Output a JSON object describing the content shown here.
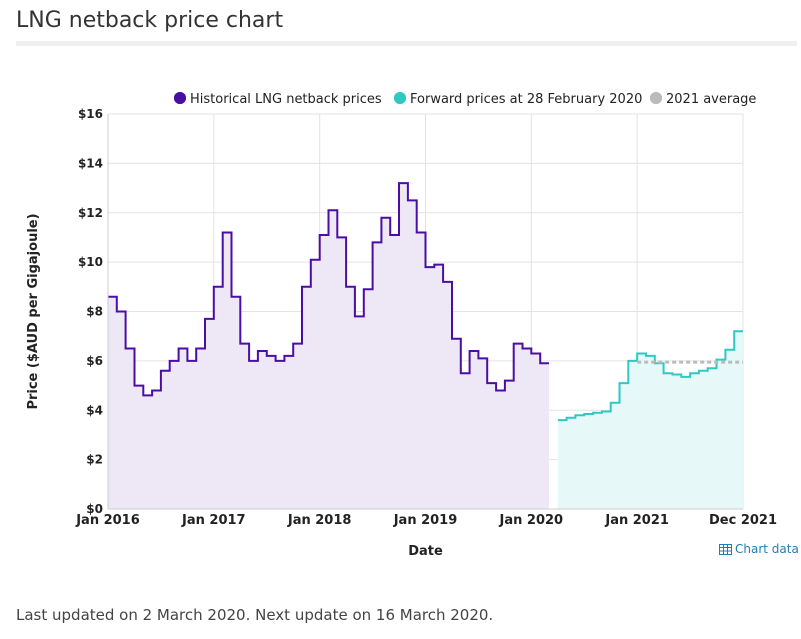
{
  "page": {
    "title": "LNG netback price chart",
    "chart_data_link": "Chart data",
    "footer": "Last updated on 2 March 2020. Next update on 16 March 2020."
  },
  "colors": {
    "historical": "#4b0ea3",
    "historical_fill": "#ede7f6",
    "forward": "#2ec9c3",
    "forward_fill": "#e6f8f8",
    "average": "#bbbbbb",
    "grid": "#e3e3e3",
    "link": "#1f7fb5"
  },
  "chart_data": {
    "type": "area",
    "xlabel": "Date",
    "ylabel": "Price ($AUD per Gigajoule)",
    "ylim": [
      0,
      16
    ],
    "xlim": [
      "2016-01",
      "2021-12"
    ],
    "grid": true,
    "legend_position": "top",
    "x_ticks": [
      "Jan 2016",
      "Jan 2017",
      "Jan 2018",
      "Jan 2019",
      "Jan 2020",
      "Jan 2021",
      "Dec 2021"
    ],
    "y_ticks": [
      "$0",
      "$2",
      "$4",
      "$6",
      "$8",
      "$10",
      "$12",
      "$14",
      "$16"
    ],
    "legend": [
      "Historical LNG netback prices",
      "Forward prices at 28 February 2020",
      "2021 average"
    ],
    "series": [
      {
        "name": "Historical LNG netback prices",
        "x": [
          "2016-01",
          "2016-02",
          "2016-03",
          "2016-04",
          "2016-05",
          "2016-06",
          "2016-07",
          "2016-08",
          "2016-09",
          "2016-10",
          "2016-11",
          "2016-12",
          "2017-01",
          "2017-02",
          "2017-03",
          "2017-04",
          "2017-05",
          "2017-06",
          "2017-07",
          "2017-08",
          "2017-09",
          "2017-10",
          "2017-11",
          "2017-12",
          "2018-01",
          "2018-02",
          "2018-03",
          "2018-04",
          "2018-05",
          "2018-06",
          "2018-07",
          "2018-08",
          "2018-09",
          "2018-10",
          "2018-11",
          "2018-12",
          "2019-01",
          "2019-02",
          "2019-03",
          "2019-04",
          "2019-05",
          "2019-06",
          "2019-07",
          "2019-08",
          "2019-09",
          "2019-10",
          "2019-11",
          "2019-12",
          "2020-01",
          "2020-02"
        ],
        "values": [
          8.6,
          8.0,
          6.5,
          5.0,
          4.6,
          4.8,
          5.6,
          6.0,
          6.5,
          6.0,
          6.5,
          7.7,
          9.0,
          11.2,
          8.6,
          6.7,
          6.0,
          6.4,
          6.2,
          6.0,
          6.2,
          6.7,
          9.0,
          10.1,
          11.1,
          12.1,
          11.0,
          9.0,
          7.8,
          8.9,
          10.8,
          11.8,
          11.1,
          13.2,
          12.5,
          11.2,
          9.8,
          9.9,
          9.2,
          6.9,
          5.5,
          6.4,
          6.1,
          5.1,
          4.8,
          5.2,
          6.7,
          6.5,
          6.3,
          5.9
        ]
      },
      {
        "name": "Forward prices at 28 February 2020",
        "x": [
          "2020-04",
          "2020-05",
          "2020-06",
          "2020-07",
          "2020-08",
          "2020-09",
          "2020-10",
          "2020-11",
          "2020-12",
          "2021-01",
          "2021-02",
          "2021-03",
          "2021-04",
          "2021-05",
          "2021-06",
          "2021-07",
          "2021-08",
          "2021-09",
          "2021-10",
          "2021-11",
          "2021-12"
        ],
        "values": [
          3.6,
          3.7,
          3.8,
          3.85,
          3.9,
          3.95,
          4.3,
          5.1,
          6.0,
          6.3,
          6.2,
          5.9,
          5.5,
          5.45,
          5.35,
          5.5,
          5.6,
          5.7,
          6.05,
          6.45,
          7.2
        ]
      },
      {
        "name": "2021 average",
        "x": [
          "2021-01",
          "2021-12"
        ],
        "values": [
          5.95,
          5.95
        ]
      }
    ]
  }
}
